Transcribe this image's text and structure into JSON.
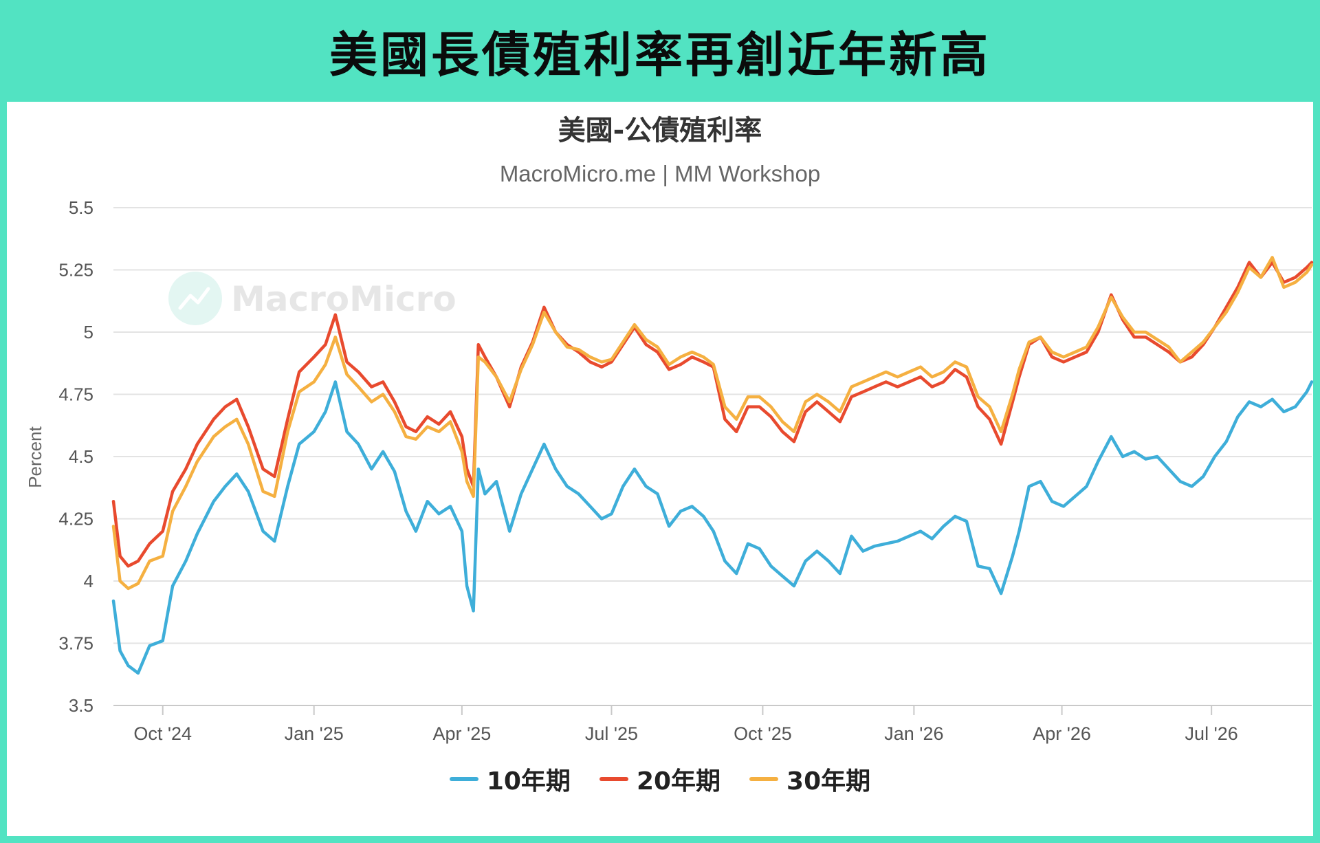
{
  "banner_title": "美國長債殖利率再創近年新高",
  "watermark": {
    "text": "MacroMicro"
  },
  "chart_data": {
    "type": "line",
    "title": "美國-公債殖利率",
    "subtitle": "MacroMicro.me | MM Workshop",
    "ylabel": "Percent",
    "xlabel": "",
    "ylim": [
      3.5,
      5.5
    ],
    "yticks": [
      3.5,
      3.75,
      4,
      4.25,
      4.5,
      4.75,
      5,
      5.25,
      5.5
    ],
    "ytick_labels": [
      "3.5",
      "3.75",
      "4",
      "4.25",
      "4.5",
      "4.75",
      "5",
      "5.25",
      "5.5"
    ],
    "xlim": [
      "2024-09-01",
      "2026-08-31"
    ],
    "xticks": [
      "2024-10-01",
      "2025-01-01",
      "2025-04-01",
      "2025-07-01",
      "2025-10-01",
      "2026-01-01",
      "2026-04-01",
      "2026-07-01"
    ],
    "xtick_labels": [
      "Oct '24",
      "Jan '25",
      "Apr '25",
      "Jul '25",
      "Oct '25",
      "Jan '26",
      "Apr '26",
      "Jul '26"
    ],
    "grid": true,
    "legend": "bottom",
    "series": [
      {
        "name": "10年期",
        "color": "#3eaed9",
        "dates": [
          "2024-09-01",
          "2024-09-05",
          "2024-09-10",
          "2024-09-16",
          "2024-09-23",
          "2024-10-01",
          "2024-10-07",
          "2024-10-15",
          "2024-10-22",
          "2024-11-01",
          "2024-11-08",
          "2024-11-15",
          "2024-11-22",
          "2024-12-01",
          "2024-12-08",
          "2024-12-16",
          "2024-12-23",
          "2025-01-01",
          "2025-01-08",
          "2025-01-14",
          "2025-01-21",
          "2025-01-28",
          "2025-02-05",
          "2025-02-12",
          "2025-02-19",
          "2025-02-26",
          "2025-03-04",
          "2025-03-11",
          "2025-03-18",
          "2025-03-25",
          "2025-04-01",
          "2025-04-04",
          "2025-04-08",
          "2025-04-11",
          "2025-04-15",
          "2025-04-22",
          "2025-04-30",
          "2025-05-07",
          "2025-05-14",
          "2025-05-21",
          "2025-05-28",
          "2025-06-04",
          "2025-06-11",
          "2025-06-18",
          "2025-06-25",
          "2025-07-01",
          "2025-07-08",
          "2025-07-15",
          "2025-07-22",
          "2025-07-29",
          "2025-08-05",
          "2025-08-12",
          "2025-08-19",
          "2025-08-26",
          "2025-09-01",
          "2025-09-08",
          "2025-09-15",
          "2025-09-22",
          "2025-09-29",
          "2025-10-06",
          "2025-10-13",
          "2025-10-20",
          "2025-10-27",
          "2025-11-03",
          "2025-11-10",
          "2025-11-17",
          "2025-11-24",
          "2025-12-01",
          "2025-12-08",
          "2025-12-15",
          "2025-12-22",
          "2025-12-29",
          "2026-01-05",
          "2026-01-12",
          "2026-01-19",
          "2026-01-26",
          "2026-02-02",
          "2026-02-09",
          "2026-02-16",
          "2026-02-23",
          "2026-03-02",
          "2026-03-06",
          "2026-03-12",
          "2026-03-19",
          "2026-03-26",
          "2026-04-02",
          "2026-04-09",
          "2026-04-16",
          "2026-04-23",
          "2026-05-01",
          "2026-05-08",
          "2026-05-15",
          "2026-05-22",
          "2026-05-29",
          "2026-06-05",
          "2026-06-12",
          "2026-06-19",
          "2026-06-26",
          "2026-07-03",
          "2026-07-10",
          "2026-07-17",
          "2026-07-24",
          "2026-07-31",
          "2026-08-07",
          "2026-08-14",
          "2026-08-21",
          "2026-08-28",
          "2026-08-31"
        ],
        "values": [
          3.92,
          3.72,
          3.66,
          3.63,
          3.74,
          3.76,
          3.98,
          4.08,
          4.19,
          4.32,
          4.38,
          4.43,
          4.36,
          4.2,
          4.16,
          4.38,
          4.55,
          4.6,
          4.68,
          4.8,
          4.6,
          4.55,
          4.45,
          4.52,
          4.44,
          4.28,
          4.2,
          4.32,
          4.27,
          4.3,
          4.2,
          3.98,
          3.88,
          4.45,
          4.35,
          4.4,
          4.2,
          4.35,
          4.45,
          4.55,
          4.45,
          4.38,
          4.35,
          4.3,
          4.25,
          4.27,
          4.38,
          4.45,
          4.38,
          4.35,
          4.22,
          4.28,
          4.3,
          4.26,
          4.2,
          4.08,
          4.03,
          4.15,
          4.13,
          4.06,
          4.02,
          3.98,
          4.08,
          4.12,
          4.08,
          4.03,
          4.18,
          4.12,
          4.14,
          4.15,
          4.16,
          4.18,
          4.2,
          4.17,
          4.22,
          4.26,
          4.24,
          4.06,
          4.05,
          3.95,
          4.1,
          4.2,
          4.38,
          4.4,
          4.32,
          4.3,
          4.34,
          4.38,
          4.48,
          4.58,
          4.5,
          4.52,
          4.49,
          4.5,
          4.45,
          4.4,
          4.38,
          4.42,
          4.5,
          4.56,
          4.66,
          4.72,
          4.7,
          4.73,
          4.68,
          4.7,
          4.76,
          4.8
        ]
      },
      {
        "name": "20年期",
        "color": "#e84a2e",
        "dates": [
          "2024-09-01",
          "2024-09-05",
          "2024-09-10",
          "2024-09-16",
          "2024-09-23",
          "2024-10-01",
          "2024-10-07",
          "2024-10-15",
          "2024-10-22",
          "2024-11-01",
          "2024-11-08",
          "2024-11-15",
          "2024-11-22",
          "2024-12-01",
          "2024-12-08",
          "2024-12-16",
          "2024-12-23",
          "2025-01-01",
          "2025-01-08",
          "2025-01-14",
          "2025-01-21",
          "2025-01-28",
          "2025-02-05",
          "2025-02-12",
          "2025-02-19",
          "2025-02-26",
          "2025-03-04",
          "2025-03-11",
          "2025-03-18",
          "2025-03-25",
          "2025-04-01",
          "2025-04-04",
          "2025-04-08",
          "2025-04-11",
          "2025-04-15",
          "2025-04-22",
          "2025-04-30",
          "2025-05-07",
          "2025-05-14",
          "2025-05-21",
          "2025-05-28",
          "2025-06-04",
          "2025-06-11",
          "2025-06-18",
          "2025-06-25",
          "2025-07-01",
          "2025-07-08",
          "2025-07-15",
          "2025-07-22",
          "2025-07-29",
          "2025-08-05",
          "2025-08-12",
          "2025-08-19",
          "2025-08-26",
          "2025-09-01",
          "2025-09-08",
          "2025-09-15",
          "2025-09-22",
          "2025-09-29",
          "2025-10-06",
          "2025-10-13",
          "2025-10-20",
          "2025-10-27",
          "2025-11-03",
          "2025-11-10",
          "2025-11-17",
          "2025-11-24",
          "2025-12-01",
          "2025-12-08",
          "2025-12-15",
          "2025-12-22",
          "2025-12-29",
          "2026-01-05",
          "2026-01-12",
          "2026-01-19",
          "2026-01-26",
          "2026-02-02",
          "2026-02-09",
          "2026-02-16",
          "2026-02-23",
          "2026-03-02",
          "2026-03-06",
          "2026-03-12",
          "2026-03-19",
          "2026-03-26",
          "2026-04-02",
          "2026-04-09",
          "2026-04-16",
          "2026-04-23",
          "2026-05-01",
          "2026-05-08",
          "2026-05-15",
          "2026-05-22",
          "2026-05-29",
          "2026-06-05",
          "2026-06-12",
          "2026-06-19",
          "2026-06-26",
          "2026-07-03",
          "2026-07-10",
          "2026-07-17",
          "2026-07-24",
          "2026-07-31",
          "2026-08-07",
          "2026-08-14",
          "2026-08-21",
          "2026-08-28",
          "2026-08-31"
        ],
        "values": [
          4.32,
          4.1,
          4.06,
          4.08,
          4.15,
          4.2,
          4.36,
          4.45,
          4.55,
          4.65,
          4.7,
          4.73,
          4.62,
          4.45,
          4.42,
          4.65,
          4.84,
          4.9,
          4.95,
          5.07,
          4.88,
          4.84,
          4.78,
          4.8,
          4.72,
          4.62,
          4.6,
          4.66,
          4.63,
          4.68,
          4.58,
          4.45,
          4.38,
          4.95,
          4.9,
          4.82,
          4.7,
          4.86,
          4.96,
          5.1,
          5.0,
          4.95,
          4.92,
          4.88,
          4.86,
          4.88,
          4.95,
          5.02,
          4.95,
          4.92,
          4.85,
          4.87,
          4.9,
          4.88,
          4.86,
          4.65,
          4.6,
          4.7,
          4.7,
          4.66,
          4.6,
          4.56,
          4.68,
          4.72,
          4.68,
          4.64,
          4.74,
          4.76,
          4.78,
          4.8,
          4.78,
          4.8,
          4.82,
          4.78,
          4.8,
          4.85,
          4.82,
          4.7,
          4.65,
          4.55,
          4.72,
          4.82,
          4.95,
          4.98,
          4.9,
          4.88,
          4.9,
          4.92,
          5.0,
          5.15,
          5.05,
          4.98,
          4.98,
          4.95,
          4.92,
          4.88,
          4.9,
          4.95,
          5.02,
          5.1,
          5.18,
          5.28,
          5.22,
          5.28,
          5.2,
          5.22,
          5.26,
          5.28
        ]
      },
      {
        "name": "30年期",
        "color": "#f5b041",
        "dates": [
          "2024-09-01",
          "2024-09-05",
          "2024-09-10",
          "2024-09-16",
          "2024-09-23",
          "2024-10-01",
          "2024-10-07",
          "2024-10-15",
          "2024-10-22",
          "2024-11-01",
          "2024-11-08",
          "2024-11-15",
          "2024-11-22",
          "2024-12-01",
          "2024-12-08",
          "2024-12-16",
          "2024-12-23",
          "2025-01-01",
          "2025-01-08",
          "2025-01-14",
          "2025-01-21",
          "2025-01-28",
          "2025-02-05",
          "2025-02-12",
          "2025-02-19",
          "2025-02-26",
          "2025-03-04",
          "2025-03-11",
          "2025-03-18",
          "2025-03-25",
          "2025-04-01",
          "2025-04-04",
          "2025-04-08",
          "2025-04-11",
          "2025-04-15",
          "2025-04-22",
          "2025-04-30",
          "2025-05-07",
          "2025-05-14",
          "2025-05-21",
          "2025-05-28",
          "2025-06-04",
          "2025-06-11",
          "2025-06-18",
          "2025-06-25",
          "2025-07-01",
          "2025-07-08",
          "2025-07-15",
          "2025-07-22",
          "2025-07-29",
          "2025-08-05",
          "2025-08-12",
          "2025-08-19",
          "2025-08-26",
          "2025-09-01",
          "2025-09-08",
          "2025-09-15",
          "2025-09-22",
          "2025-09-29",
          "2025-10-06",
          "2025-10-13",
          "2025-10-20",
          "2025-10-27",
          "2025-11-03",
          "2025-11-10",
          "2025-11-17",
          "2025-11-24",
          "2025-12-01",
          "2025-12-08",
          "2025-12-15",
          "2025-12-22",
          "2025-12-29",
          "2026-01-05",
          "2026-01-12",
          "2026-01-19",
          "2026-01-26",
          "2026-02-02",
          "2026-02-09",
          "2026-02-16",
          "2026-02-23",
          "2026-03-02",
          "2026-03-06",
          "2026-03-12",
          "2026-03-19",
          "2026-03-26",
          "2026-04-02",
          "2026-04-09",
          "2026-04-16",
          "2026-04-23",
          "2026-05-01",
          "2026-05-08",
          "2026-05-15",
          "2026-05-22",
          "2026-05-29",
          "2026-06-05",
          "2026-06-12",
          "2026-06-19",
          "2026-06-26",
          "2026-07-03",
          "2026-07-10",
          "2026-07-17",
          "2026-07-24",
          "2026-07-31",
          "2026-08-07",
          "2026-08-14",
          "2026-08-21",
          "2026-08-28",
          "2026-08-31"
        ],
        "values": [
          4.22,
          4.0,
          3.97,
          3.99,
          4.08,
          4.1,
          4.28,
          4.38,
          4.48,
          4.58,
          4.62,
          4.65,
          4.55,
          4.36,
          4.34,
          4.6,
          4.76,
          4.8,
          4.87,
          4.98,
          4.83,
          4.78,
          4.72,
          4.75,
          4.68,
          4.58,
          4.57,
          4.62,
          4.6,
          4.64,
          4.52,
          4.4,
          4.34,
          4.9,
          4.88,
          4.82,
          4.72,
          4.85,
          4.95,
          5.08,
          5.0,
          4.94,
          4.93,
          4.9,
          4.88,
          4.89,
          4.96,
          5.03,
          4.97,
          4.94,
          4.87,
          4.9,
          4.92,
          4.9,
          4.87,
          4.7,
          4.65,
          4.74,
          4.74,
          4.7,
          4.64,
          4.6,
          4.72,
          4.75,
          4.72,
          4.68,
          4.78,
          4.8,
          4.82,
          4.84,
          4.82,
          4.84,
          4.86,
          4.82,
          4.84,
          4.88,
          4.86,
          4.74,
          4.7,
          4.6,
          4.75,
          4.85,
          4.96,
          4.98,
          4.92,
          4.9,
          4.92,
          4.94,
          5.02,
          5.14,
          5.06,
          5.0,
          5.0,
          4.97,
          4.94,
          4.88,
          4.92,
          4.96,
          5.02,
          5.08,
          5.16,
          5.26,
          5.22,
          5.3,
          5.18,
          5.2,
          5.24,
          5.27
        ]
      }
    ]
  }
}
